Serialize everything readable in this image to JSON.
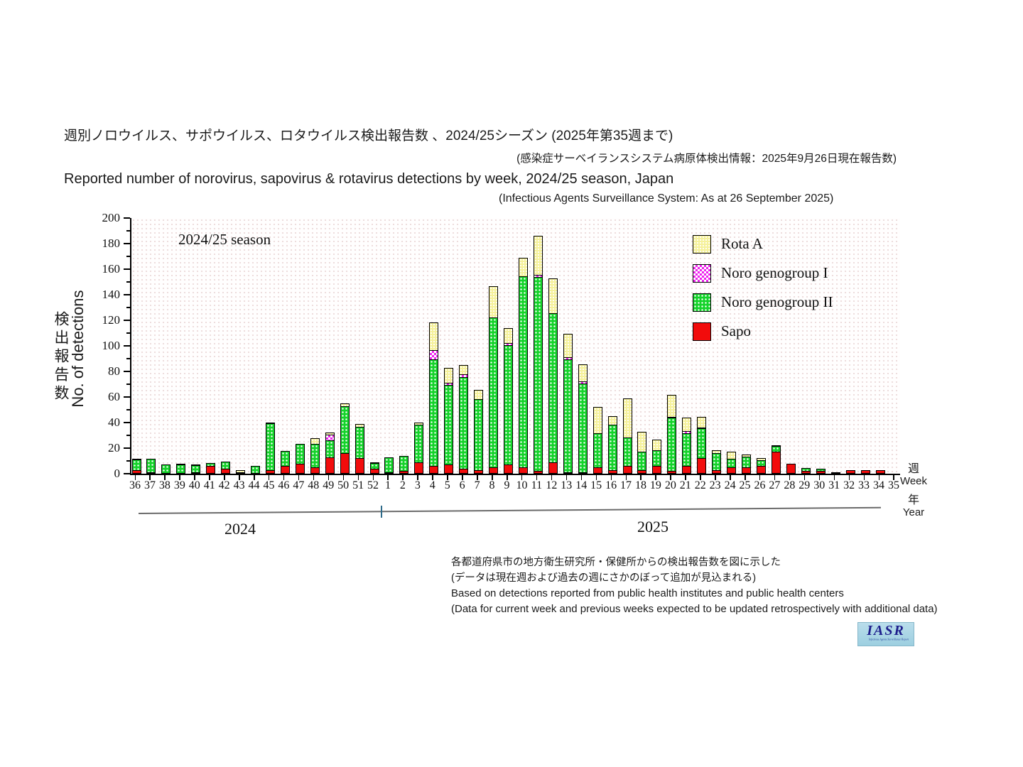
{
  "header": {
    "jp_title": "週別ノロウイルス、サポウイルス、ロタウイルス検出報告数 、2024/25シーズン (2025年第35週まで)",
    "jp_subtitle": "(感染症サーベイランスシステム病原体検出情報：2025年9月26日現在報告数)",
    "en_title": "Reported number of norovirus, sapovirus & rotavirus detections by week, 2024/25 season, Japan",
    "en_subtitle": "(Infectious Agents Surveillance System: As at 26 September 2025)"
  },
  "chart": {
    "season_label": "2024/25 season",
    "ylabel_jp": "検出報告数",
    "ylabel_en": "No. of detections",
    "week_label_jp": "週",
    "week_label_en": "Week",
    "year_label_jp": "年",
    "year_label_en": "Year",
    "year_2024": "2024",
    "year_2025": "2025",
    "legend": [
      {
        "label": "Rota A",
        "key": "rota",
        "color": "#f5f19b",
        "pattern": "fine-dots"
      },
      {
        "label": "Noro genogroup I",
        "key": "gi",
        "color": "#ee22ee",
        "pattern": "checker"
      },
      {
        "label": "Noro genogroup II",
        "key": "gii",
        "color": "#14d32a",
        "pattern": "white-dots"
      },
      {
        "label": "Sapo",
        "key": "sapo",
        "color": "#f20c0c",
        "pattern": "solid"
      }
    ]
  },
  "chart_data": {
    "type": "bar",
    "stacked": true,
    "title": "2024/25 season",
    "xlabel": "Week / Year",
    "ylabel": "No. of detections (検出報告数)",
    "ylim": [
      0,
      200
    ],
    "ytick_step": 20,
    "grid": false,
    "legend_position": "upper-right-inside",
    "year_groups": [
      {
        "year": "2024",
        "weeks": [
          "36",
          "37",
          "38",
          "39",
          "40",
          "41",
          "42",
          "43",
          "44",
          "45",
          "46",
          "47",
          "48",
          "49",
          "50",
          "51",
          "52"
        ]
      },
      {
        "year": "2025",
        "weeks": [
          "1",
          "2",
          "3",
          "4",
          "5",
          "6",
          "7",
          "8",
          "9",
          "10",
          "11",
          "12",
          "13",
          "14",
          "15",
          "16",
          "17",
          "18",
          "19",
          "20",
          "21",
          "22",
          "23",
          "24",
          "25",
          "26",
          "27",
          "28",
          "29",
          "30",
          "31",
          "32",
          "33",
          "34",
          "35"
        ]
      }
    ],
    "categories": [
      "36",
      "37",
      "38",
      "39",
      "40",
      "41",
      "42",
      "43",
      "44",
      "45",
      "46",
      "47",
      "48",
      "49",
      "50",
      "51",
      "52",
      "1",
      "2",
      "3",
      "4",
      "5",
      "6",
      "7",
      "8",
      "9",
      "10",
      "11",
      "12",
      "13",
      "14",
      "15",
      "16",
      "17",
      "18",
      "19",
      "20",
      "21",
      "22",
      "23",
      "24",
      "25",
      "26",
      "27",
      "28",
      "29",
      "30",
      "31",
      "32",
      "33",
      "34",
      "35"
    ],
    "stack_order_bottom_to_top": [
      "Sapo",
      "Noro genogroup II",
      "Noro genogroup I",
      "Rota A"
    ],
    "series": [
      {
        "name": "Sapo",
        "key": "sapo",
        "values": [
          3,
          1,
          0,
          0,
          1,
          6,
          4,
          0,
          0,
          3,
          6,
          8,
          5,
          13,
          16,
          12,
          4,
          1,
          2,
          9,
          6,
          7,
          4,
          3,
          5,
          7,
          5,
          2,
          9,
          1,
          1,
          5,
          3,
          6,
          3,
          6,
          2,
          6,
          12,
          3,
          5,
          5,
          6,
          17,
          8,
          2,
          2,
          1,
          3,
          3,
          3,
          0
        ]
      },
      {
        "name": "Noro genogroup II",
        "key": "gii",
        "values": [
          9,
          11,
          7,
          7,
          6,
          3,
          6,
          0,
          6,
          37,
          12,
          16,
          19,
          14,
          37,
          25,
          5,
          12,
          12,
          30,
          84,
          63,
          72,
          56,
          118,
          94,
          150,
          152,
          117,
          89,
          70,
          27,
          36,
          23,
          15,
          13,
          42,
          26,
          24,
          14,
          7,
          9,
          5,
          5,
          0,
          3,
          2,
          0,
          0,
          0,
          0,
          0
        ]
      },
      {
        "name": "Noro genogroup I",
        "key": "gi",
        "values": [
          1,
          0,
          0,
          1,
          1,
          0,
          0,
          1,
          0,
          0,
          0,
          0,
          0,
          5,
          0,
          0,
          0,
          0,
          0,
          0,
          8,
          2,
          3,
          0,
          0,
          2,
          0,
          2,
          0,
          2,
          2,
          0,
          0,
          0,
          0,
          0,
          1,
          2,
          1,
          0,
          0,
          0,
          0,
          0,
          0,
          0,
          0,
          0,
          0,
          0,
          0,
          0
        ]
      },
      {
        "name": "Rota A",
        "key": "rota",
        "values": [
          0,
          0,
          0,
          0,
          0,
          0,
          0,
          2,
          0,
          1,
          0,
          0,
          5,
          2,
          3,
          3,
          1,
          0,
          0,
          2,
          22,
          12,
          8,
          8,
          25,
          12,
          15,
          31,
          28,
          19,
          14,
          21,
          7,
          31,
          16,
          9,
          18,
          11,
          9,
          3,
          6,
          2,
          2,
          1,
          0,
          0,
          0,
          0,
          0,
          0,
          0,
          0
        ]
      }
    ]
  },
  "footnotes": [
    "各都道府県市の地方衛生研究所・保健所からの検出報告数を図に示した",
    "(データは現在週および過去の週にさかのぼって追加が見込まれる)",
    "Based on detections reported from public health institutes and public health centers",
    "(Data for current week and previous weeks expected to be updated retrospectively with additional data)"
  ],
  "logo": {
    "text": "IASR",
    "subtext": "Infectious Agents Surveillance Report"
  }
}
